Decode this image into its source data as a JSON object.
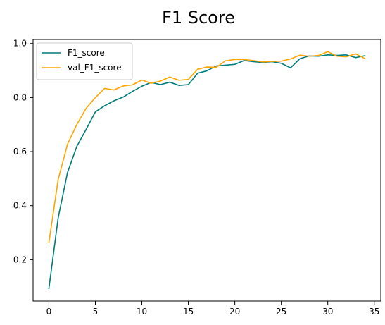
{
  "chart_data": {
    "type": "line",
    "title": "F1 Score",
    "xlabel": "",
    "ylabel": "",
    "xlim": [
      -1.7,
      35.7
    ],
    "ylim": [
      0.047,
      1.015
    ],
    "grid": false,
    "legend_placement": "top-left",
    "x_ticks": [
      0,
      5,
      10,
      15,
      20,
      25,
      30,
      35
    ],
    "y_ticks": [
      0.2,
      0.4,
      0.6,
      0.8,
      1.0
    ],
    "x": [
      0,
      1,
      2,
      3,
      4,
      5,
      6,
      7,
      8,
      9,
      10,
      11,
      12,
      13,
      14,
      15,
      16,
      17,
      18,
      19,
      20,
      21,
      22,
      23,
      24,
      25,
      26,
      27,
      28,
      29,
      30,
      31,
      32,
      33,
      34
    ],
    "series": [
      {
        "name": "F1_score",
        "color": "#007b7b",
        "values": [
          0.093,
          0.355,
          0.522,
          0.619,
          0.682,
          0.747,
          0.77,
          0.788,
          0.802,
          0.823,
          0.842,
          0.856,
          0.848,
          0.857,
          0.845,
          0.848,
          0.89,
          0.899,
          0.917,
          0.92,
          0.923,
          0.937,
          0.933,
          0.93,
          0.933,
          0.927,
          0.91,
          0.944,
          0.954,
          0.953,
          0.958,
          0.956,
          0.958,
          0.948,
          0.955
        ]
      },
      {
        "name": "val_F1_score",
        "color": "#ffa500",
        "values": [
          0.263,
          0.497,
          0.627,
          0.7,
          0.76,
          0.8,
          0.834,
          0.828,
          0.843,
          0.847,
          0.865,
          0.853,
          0.861,
          0.876,
          0.864,
          0.867,
          0.905,
          0.913,
          0.912,
          0.936,
          0.941,
          0.941,
          0.937,
          0.932,
          0.934,
          0.935,
          0.943,
          0.957,
          0.953,
          0.956,
          0.97,
          0.953,
          0.951,
          0.962,
          0.944
        ]
      }
    ]
  }
}
